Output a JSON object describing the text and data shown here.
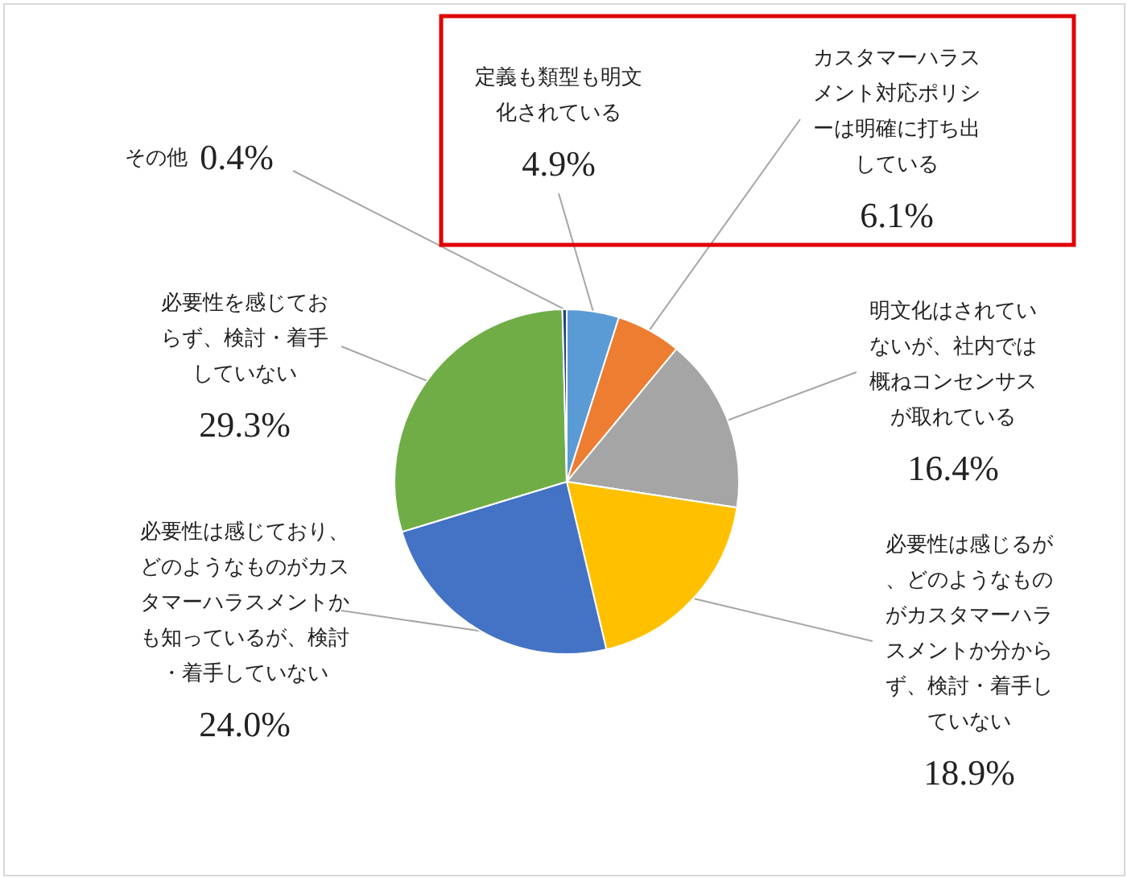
{
  "chart_data": {
    "type": "pie",
    "categories": [
      "定義も類型も明文化されている",
      "カスタマーハラスメント対応ポリシーは明確に打ち出している",
      "明文化はされていないが、社内では概ねコンセンサスが取れている",
      "必要性は感じるが、どのようなものがカスタマーハラスメントか分からず、検討・着手していない",
      "必要性は感じており、どのようなものがカスタマーハラスメントかも知っているが、検討・着手していない",
      "必要性を感じておらず、検討・着手していない",
      "その他"
    ],
    "values": [
      4.9,
      6.1,
      16.4,
      18.9,
      24.0,
      29.3,
      0.4
    ],
    "colors": [
      "#5b9bd5",
      "#ed7d31",
      "#a5a5a5",
      "#ffc000",
      "#4472c4",
      "#70ad47",
      "#264478"
    ],
    "value_labels": [
      "4.9%",
      "6.1%",
      "16.4%",
      "18.9%",
      "24.0%",
      "29.3%",
      "0.4%"
    ]
  }
}
